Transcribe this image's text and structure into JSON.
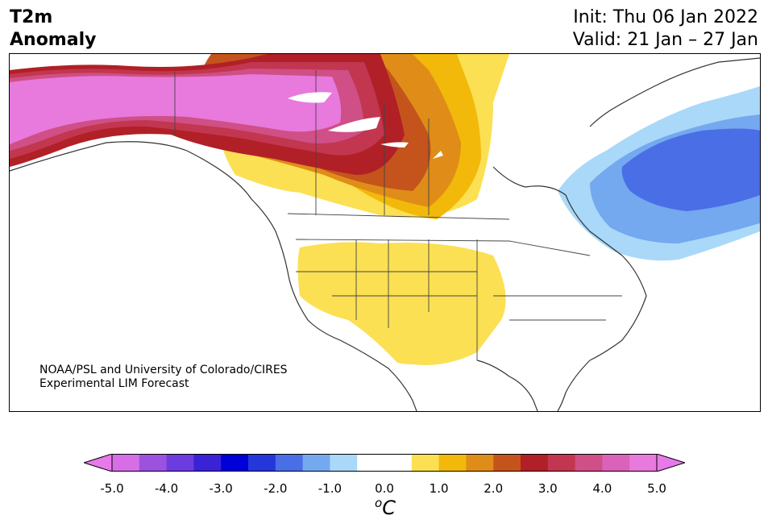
{
  "header": {
    "title_line1": "T2m",
    "title_line2": "Anomaly",
    "init": "Init: Thu 06 Jan 2022",
    "valid": "Valid: 21 Jan – 27 Jan"
  },
  "credit": {
    "line1": "NOAA/PSL and University of Colorado/CIRES",
    "line2": "Experimental LIM Forecast"
  },
  "colorbar": {
    "unit_base": "C",
    "unit_sup": "o",
    "tick_labels": [
      "-5.0",
      "-4.0",
      "-3.0",
      "-2.0",
      "-1.0",
      "0.0",
      "1.0",
      "2.0",
      "3.0",
      "4.0",
      "5.0"
    ],
    "colors": [
      "#d66fe6",
      "#9b52de",
      "#6c3ce0",
      "#3a22d6",
      "#0000d8",
      "#2536db",
      "#4a6ee6",
      "#74a8ef",
      "#a9d8f9",
      "#ffffff",
      "#ffffff",
      "#fbe054",
      "#f2b90a",
      "#df8d18",
      "#c4541c",
      "#b02026",
      "#c23650",
      "#cf4f86",
      "#da62b8",
      "#e879dd"
    ],
    "extend_low_color": "#e879ea",
    "extend_high_color": "#e879ea"
  }
}
